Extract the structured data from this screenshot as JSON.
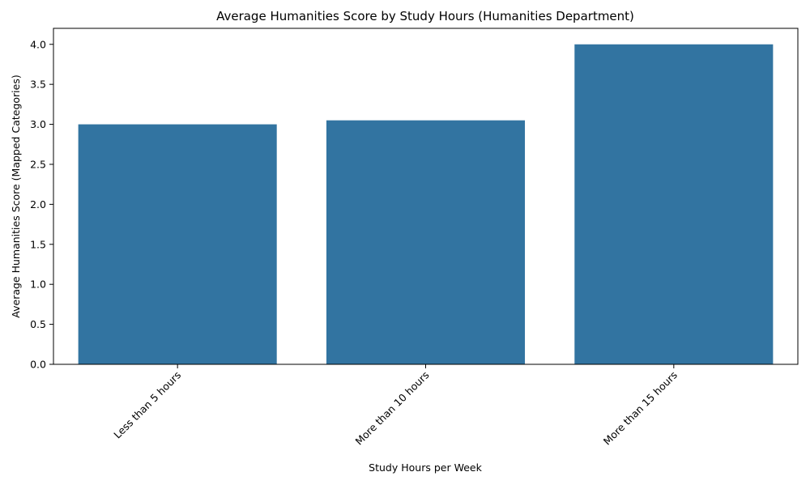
{
  "chart_data": {
    "type": "bar",
    "title": "Average Humanities Score by Study Hours (Humanities Department)",
    "xlabel": "Study Hours per Week",
    "ylabel": "Average Humanities Score (Mapped Categories)",
    "categories": [
      "Less than 5 hours",
      "More than 10 hours",
      "More than 15 hours"
    ],
    "values": [
      3.0,
      3.05,
      4.0
    ],
    "ylim": [
      0,
      4.2
    ],
    "yticks": [
      "0.0",
      "0.5",
      "1.0",
      "1.5",
      "2.0",
      "2.5",
      "3.0",
      "3.5",
      "4.0"
    ],
    "bar_color": "#3274a1",
    "grid": false,
    "legend": "none"
  }
}
